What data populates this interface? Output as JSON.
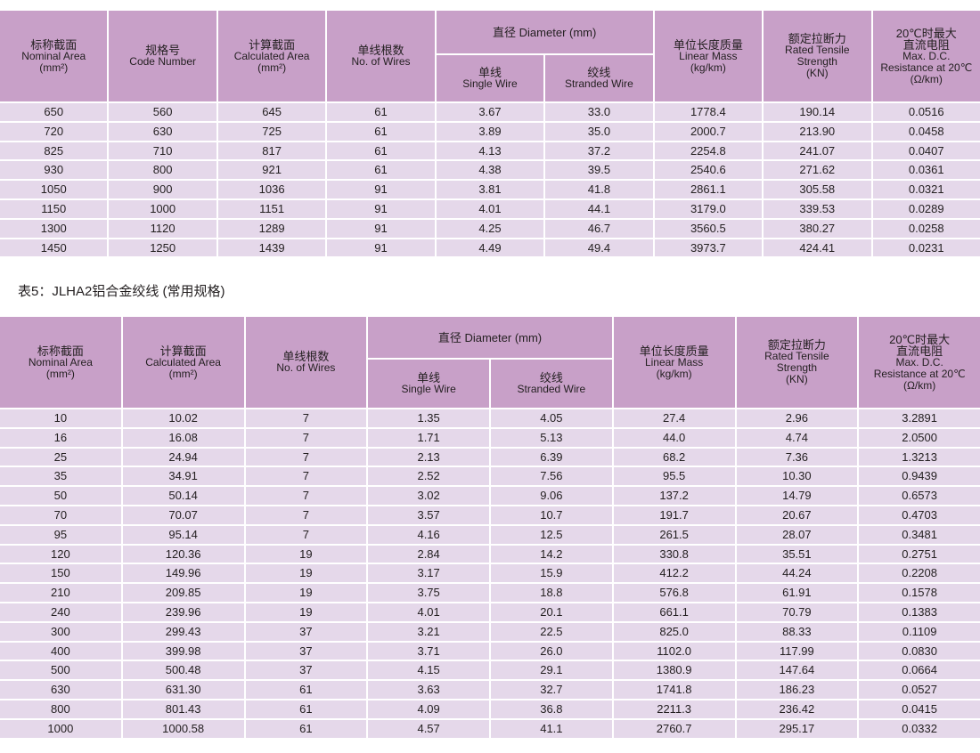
{
  "table4": {
    "headers": {
      "nominal": {
        "cn": "标称截面",
        "en": "Nominal Area",
        "unit": "(mm²)"
      },
      "code": {
        "cn": "规格号",
        "en": "Code Number"
      },
      "calc": {
        "cn": "计算截面",
        "en": "Calculated Area",
        "unit": "(mm²)"
      },
      "wires": {
        "cn": "单线根数",
        "en": "No. of Wires"
      },
      "diameter": {
        "label": "直径 Diameter (mm)"
      },
      "single": {
        "cn": "单线",
        "en": "Single Wire"
      },
      "stranded": {
        "cn": "绞线",
        "en": "Stranded Wire"
      },
      "mass": {
        "cn": "单位长度质量",
        "en": "Linear Mass",
        "unit": "(kg/km)"
      },
      "tensile": {
        "cn": "额定拉断力",
        "en": "Rated Tensile",
        "en2": "Strength",
        "unit": "(KN)"
      },
      "resistance": {
        "cn": "20℃时最大",
        "cn2": "直流电阻",
        "en": "Max. D.C.",
        "en2": "Resistance at 20℃",
        "unit": "(Ω/km)"
      }
    },
    "rows": [
      [
        "650",
        "560",
        "645",
        "61",
        "3.67",
        "33.0",
        "1778.4",
        "190.14",
        "0.0516"
      ],
      [
        "720",
        "630",
        "725",
        "61",
        "3.89",
        "35.0",
        "2000.7",
        "213.90",
        "0.0458"
      ],
      [
        "825",
        "710",
        "817",
        "61",
        "4.13",
        "37.2",
        "2254.8",
        "241.07",
        "0.0407"
      ],
      [
        "930",
        "800",
        "921",
        "61",
        "4.38",
        "39.5",
        "2540.6",
        "271.62",
        "0.0361"
      ],
      [
        "1050",
        "900",
        "1036",
        "91",
        "3.81",
        "41.8",
        "2861.1",
        "305.58",
        "0.0321"
      ],
      [
        "1150",
        "1000",
        "1151",
        "91",
        "4.01",
        "44.1",
        "3179.0",
        "339.53",
        "0.0289"
      ],
      [
        "1300",
        "1120",
        "1289",
        "91",
        "4.25",
        "46.7",
        "3560.5",
        "380.27",
        "0.0258"
      ],
      [
        "1450",
        "1250",
        "1439",
        "91",
        "4.49",
        "49.4",
        "3973.7",
        "424.41",
        "0.0231"
      ]
    ]
  },
  "table5": {
    "title": "表5：JLHA2铝合金绞线 (常用规格)",
    "headers": {
      "nominal": {
        "cn": "标称截面",
        "en": "Nominal Area",
        "unit": "(mm²)"
      },
      "calc": {
        "cn": "计算截面",
        "en": "Calculated Area",
        "unit": "(mm²)"
      },
      "wires": {
        "cn": "单线根数",
        "en": "No. of Wires"
      },
      "diameter": {
        "label": "直径 Diameter (mm)"
      },
      "single": {
        "cn": "单线",
        "en": "Single Wire"
      },
      "stranded": {
        "cn": "绞线",
        "en": "Stranded Wire"
      },
      "mass": {
        "cn": "单位长度质量",
        "en": "Linear Mass",
        "unit": "(kg/km)"
      },
      "tensile": {
        "cn": "额定拉断力",
        "en": "Rated Tensile",
        "en2": "Strength",
        "unit": "(KN)"
      },
      "resistance": {
        "cn": "20℃时最大",
        "cn2": "直流电阻",
        "en": "Max. D.C.",
        "en2": "Resistance at 20℃",
        "unit": "(Ω/km)"
      }
    },
    "rows": [
      [
        "10",
        "10.02",
        "7",
        "1.35",
        "4.05",
        "27.4",
        "2.96",
        "3.2891"
      ],
      [
        "16",
        "16.08",
        "7",
        "1.71",
        "5.13",
        "44.0",
        "4.74",
        "2.0500"
      ],
      [
        "25",
        "24.94",
        "7",
        "2.13",
        "6.39",
        "68.2",
        "7.36",
        "1.3213"
      ],
      [
        "35",
        "34.91",
        "7",
        "2.52",
        "7.56",
        "95.5",
        "10.30",
        "0.9439"
      ],
      [
        "50",
        "50.14",
        "7",
        "3.02",
        "9.06",
        "137.2",
        "14.79",
        "0.6573"
      ],
      [
        "70",
        "70.07",
        "7",
        "3.57",
        "10.7",
        "191.7",
        "20.67",
        "0.4703"
      ],
      [
        "95",
        "95.14",
        "7",
        "4.16",
        "12.5",
        "261.5",
        "28.07",
        "0.3481"
      ],
      [
        "120",
        "120.36",
        "19",
        "2.84",
        "14.2",
        "330.8",
        "35.51",
        "0.2751"
      ],
      [
        "150",
        "149.96",
        "19",
        "3.17",
        "15.9",
        "412.2",
        "44.24",
        "0.2208"
      ],
      [
        "210",
        "209.85",
        "19",
        "3.75",
        "18.8",
        "576.8",
        "61.91",
        "0.1578"
      ],
      [
        "240",
        "239.96",
        "19",
        "4.01",
        "20.1",
        "661.1",
        "70.79",
        "0.1383"
      ],
      [
        "300",
        "299.43",
        "37",
        "3.21",
        "22.5",
        "825.0",
        "88.33",
        "0.1109"
      ],
      [
        "400",
        "399.98",
        "37",
        "3.71",
        "26.0",
        "1102.0",
        "117.99",
        "0.0830"
      ],
      [
        "500",
        "500.48",
        "37",
        "4.15",
        "29.1",
        "1380.9",
        "147.64",
        "0.0664"
      ],
      [
        "630",
        "631.30",
        "61",
        "3.63",
        "32.7",
        "1741.8",
        "186.23",
        "0.0527"
      ],
      [
        "800",
        "801.43",
        "61",
        "4.09",
        "36.8",
        "2211.3",
        "236.42",
        "0.0415"
      ],
      [
        "1000",
        "1000.58",
        "61",
        "4.57",
        "41.1",
        "2760.7",
        "295.17",
        "0.0332"
      ]
    ]
  }
}
